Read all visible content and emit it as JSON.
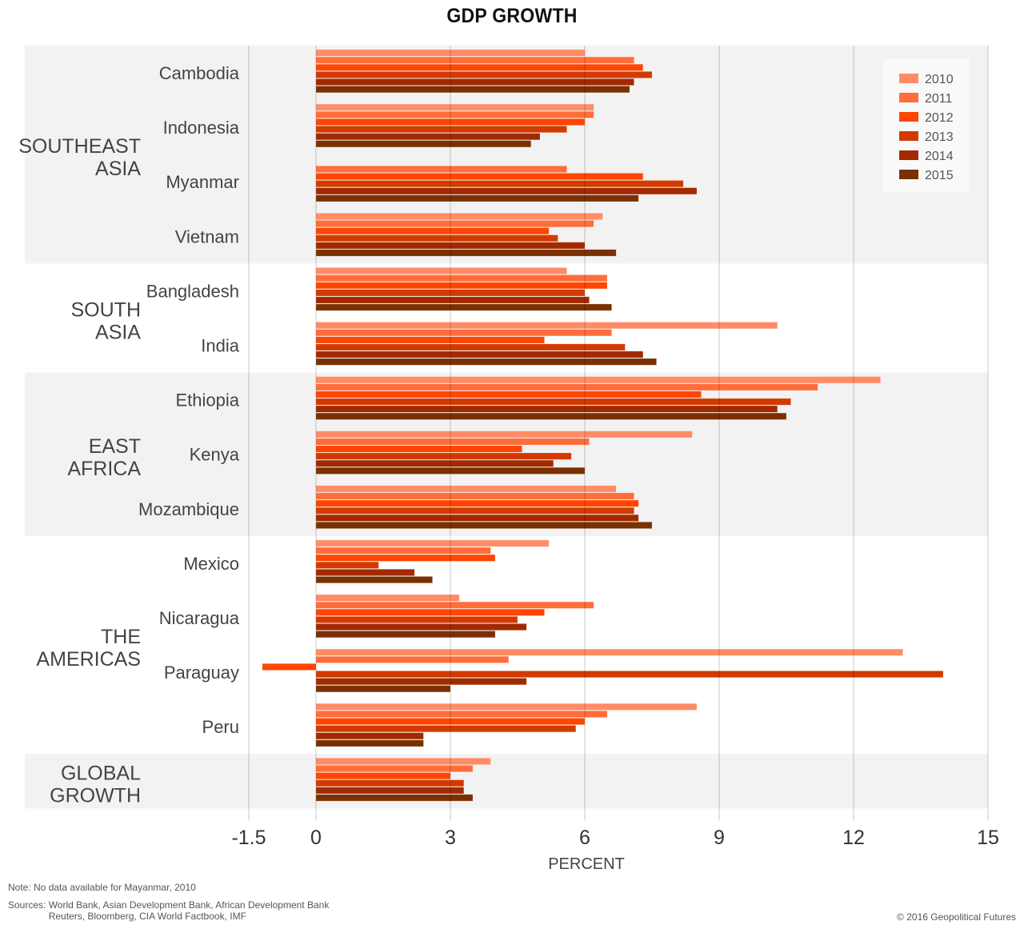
{
  "chart_data": {
    "type": "bar",
    "orientation": "horizontal",
    "title": "GDP GROWTH",
    "xlabel": "PERCENT",
    "ylabel": "",
    "xlim": [
      -1.5,
      15
    ],
    "xticks": [
      -1.5,
      0,
      3,
      6,
      9,
      12,
      15
    ],
    "xtick_labels": [
      "-1.5",
      "0",
      "3",
      "6",
      "9",
      "12",
      "15"
    ],
    "grid": true,
    "legend_position": "top-right",
    "series": [
      {
        "name": "2010",
        "color": "#FF8C66"
      },
      {
        "name": "2011",
        "color": "#FF6D3A"
      },
      {
        "name": "2012",
        "color": "#FF4500"
      },
      {
        "name": "2013",
        "color": "#D23A00"
      },
      {
        "name": "2014",
        "color": "#A12A00"
      },
      {
        "name": "2015",
        "color": "#7A3000"
      }
    ],
    "groups": [
      {
        "region": "SOUTHEAST ASIA",
        "region_lines": [
          "SOUTHEAST",
          "ASIA"
        ],
        "shaded": true,
        "countries": [
          {
            "name": "Cambodia",
            "values": [
              6.0,
              7.1,
              7.3,
              7.5,
              7.1,
              7.0
            ]
          },
          {
            "name": "Indonesia",
            "values": [
              6.2,
              6.2,
              6.0,
              5.6,
              5.0,
              4.8
            ]
          },
          {
            "name": "Myanmar",
            "values": [
              null,
              5.6,
              7.3,
              8.2,
              8.5,
              7.2
            ]
          },
          {
            "name": "Vietnam",
            "values": [
              6.4,
              6.2,
              5.2,
              5.4,
              6.0,
              6.7
            ]
          }
        ]
      },
      {
        "region": "SOUTH ASIA",
        "region_lines": [
          "SOUTH",
          "ASIA"
        ],
        "shaded": false,
        "countries": [
          {
            "name": "Bangladesh",
            "values": [
              5.6,
              6.5,
              6.5,
              6.0,
              6.1,
              6.6
            ]
          },
          {
            "name": "India",
            "values": [
              10.3,
              6.6,
              5.1,
              6.9,
              7.3,
              7.6
            ]
          }
        ]
      },
      {
        "region": "EAST AFRICA",
        "region_lines": [
          "EAST",
          "AFRICA"
        ],
        "shaded": true,
        "countries": [
          {
            "name": "Ethiopia",
            "values": [
              12.6,
              11.2,
              8.6,
              10.6,
              10.3,
              10.5
            ]
          },
          {
            "name": "Kenya",
            "values": [
              8.4,
              6.1,
              4.6,
              5.7,
              5.3,
              6.0
            ]
          },
          {
            "name": "Mozambique",
            "values": [
              6.7,
              7.1,
              7.2,
              7.1,
              7.2,
              7.5
            ]
          }
        ]
      },
      {
        "region": "THE AMERICAS",
        "region_lines": [
          "THE",
          "AMERICAS"
        ],
        "shaded": false,
        "countries": [
          {
            "name": "Mexico",
            "values": [
              5.2,
              3.9,
              4.0,
              1.4,
              2.2,
              2.6
            ]
          },
          {
            "name": "Nicaragua",
            "values": [
              3.2,
              6.2,
              5.1,
              4.5,
              4.7,
              4.0
            ]
          },
          {
            "name": "Paraguay",
            "values": [
              13.1,
              4.3,
              -1.2,
              14.0,
              4.7,
              3.0
            ]
          },
          {
            "name": "Peru",
            "values": [
              8.5,
              6.5,
              6.0,
              5.8,
              2.4,
              2.4
            ]
          }
        ]
      },
      {
        "region": "GLOBAL GROWTH",
        "region_lines": [
          "GLOBAL",
          "GROWTH"
        ],
        "shaded": true,
        "countries": [
          {
            "name": "",
            "values": [
              3.9,
              3.5,
              3.0,
              3.3,
              3.3,
              3.5
            ]
          }
        ]
      }
    ],
    "annotations": {
      "note": "Note: No data available for Mayanmar, 2010",
      "sources_label": "Sources:",
      "sources_lines": [
        "World Bank, Asian Development Bank, African Development Bank",
        "Reuters, Bloomberg, CIA World Factbook, IMF"
      ],
      "copyright": "© 2016 Geopolitical Futures"
    }
  }
}
